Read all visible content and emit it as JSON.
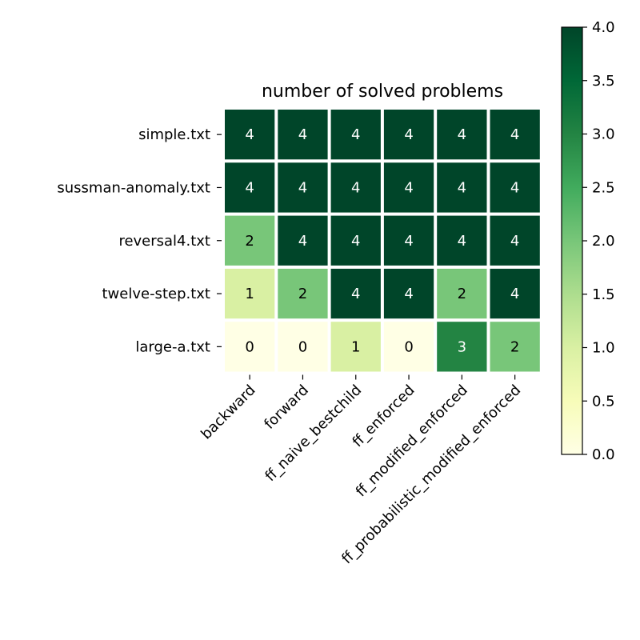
{
  "chart_data": {
    "type": "heatmap",
    "title": "number of solved problems",
    "xlabel": "",
    "ylabel": "",
    "x_categories": [
      "backward",
      "forward",
      "ff_naive_bestchild",
      "ff_enforced",
      "ff_modified_enforced",
      "ff_probabilistic_modified_enforced"
    ],
    "y_categories": [
      "simple.txt",
      "sussman-anomaly.txt",
      "reversal4.txt",
      "twelve-step.txt",
      "large-a.txt"
    ],
    "values": [
      [
        4,
        4,
        4,
        4,
        4,
        4
      ],
      [
        4,
        4,
        4,
        4,
        4,
        4
      ],
      [
        2,
        4,
        4,
        4,
        4,
        4
      ],
      [
        1,
        2,
        4,
        4,
        2,
        4
      ],
      [
        0,
        0,
        1,
        0,
        3,
        2
      ]
    ],
    "colorscale": "YlGn",
    "color_range": [
      0,
      4
    ],
    "colorbar_ticks": [
      "0.0",
      "0.5",
      "1.0",
      "1.5",
      "2.0",
      "2.5",
      "3.0",
      "3.5",
      "4.0"
    ],
    "annotated": true,
    "grid": false
  }
}
